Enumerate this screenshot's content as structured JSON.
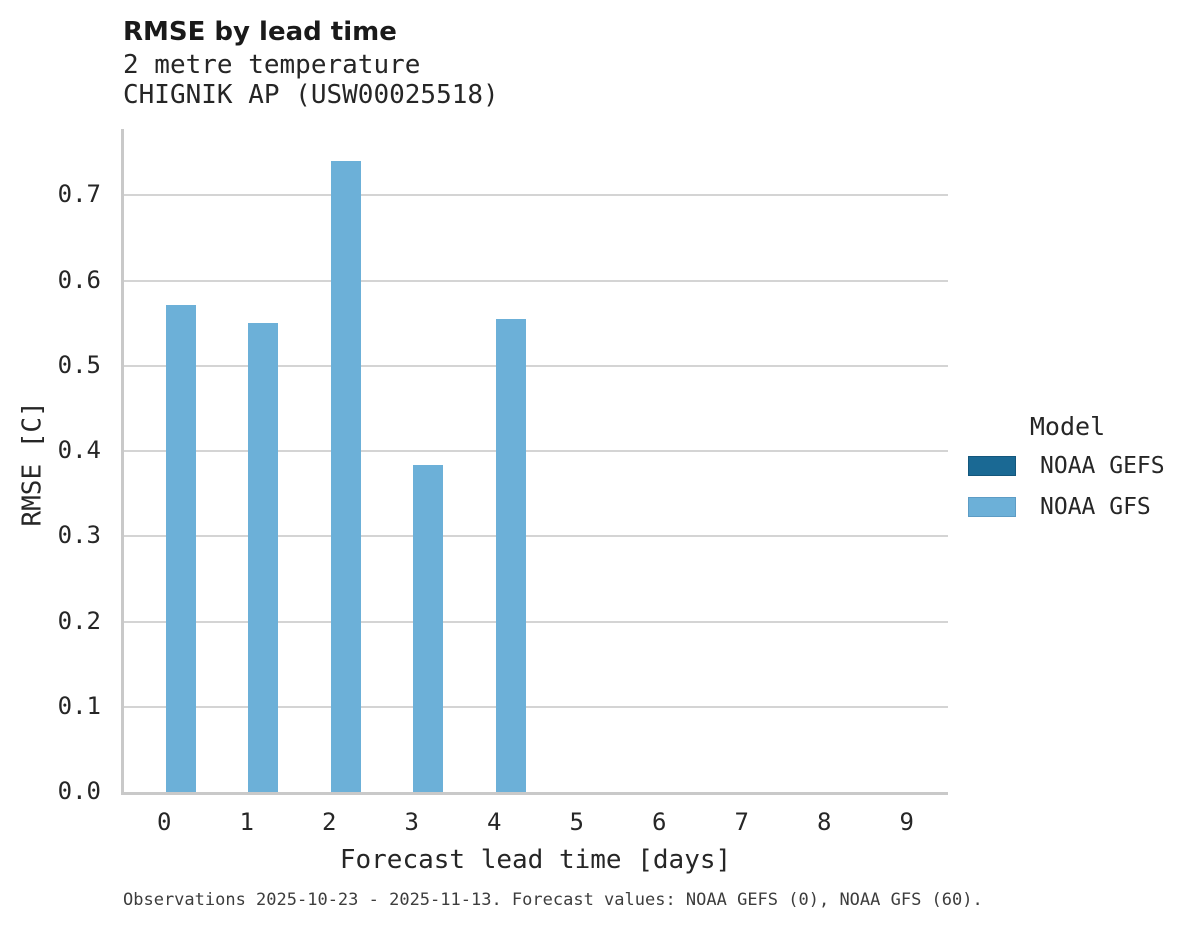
{
  "header": {
    "title": "RMSE by lead time",
    "subtitle_line1": "2 metre temperature",
    "subtitle_line2": "CHIGNIK AP (USW00025518)"
  },
  "chart_data": {
    "type": "bar",
    "title": "RMSE by lead time",
    "subtitle": [
      "2 metre temperature",
      "CHIGNIK AP (USW00025518)"
    ],
    "xlabel": "Forecast lead time [days]",
    "ylabel": "RMSE [C]",
    "categories": [
      "0",
      "1",
      "2",
      "3",
      "4",
      "5",
      "6",
      "7",
      "8",
      "9"
    ],
    "series": [
      {
        "name": "NOAA GEFS",
        "color": "#1a6994",
        "values": [
          null,
          null,
          null,
          null,
          null,
          null,
          null,
          null,
          null,
          null
        ]
      },
      {
        "name": "NOAA GFS",
        "color": "#6cb0d8",
        "values": [
          0.571,
          0.55,
          0.74,
          0.384,
          0.555,
          null,
          null,
          null,
          null,
          null
        ]
      }
    ],
    "ylim": [
      0,
      0.778
    ],
    "yticks": [
      0.0,
      0.1,
      0.2,
      0.3,
      0.4,
      0.5,
      0.6,
      0.7
    ],
    "grid": "horizontal",
    "legend_title": "Model",
    "legend_position": "center-right"
  },
  "legend": {
    "title": "Model",
    "items": [
      {
        "label": "NOAA GEFS",
        "color": "#1a6994",
        "edge": "#14577c"
      },
      {
        "label": "NOAA GFS",
        "color": "#6cb0d8",
        "edge": "#5d9cc5"
      }
    ]
  },
  "axes": {
    "xlabel": "Forecast lead time [days]",
    "ylabel": "RMSE [C]"
  },
  "caption": {
    "text": "Observations 2025-10-23 - 2025-11-13. Forecast values: NOAA GEFS (0), NOAA GFS (60)."
  },
  "colors": {
    "bar_fill": "#6cb0d8",
    "gefs_fill": "#1a6994",
    "gridline": "#d4d4d4",
    "spine": "#c9c9c9",
    "text": "#262626",
    "caption_text": "#3d3d3d",
    "background": "#ffffff"
  }
}
